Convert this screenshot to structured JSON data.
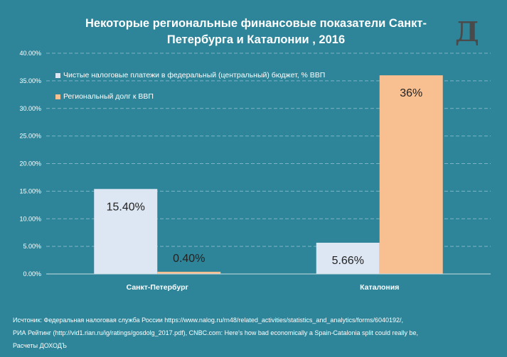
{
  "title_line1": "Некоторые региональные финансовые показатели Санкт-",
  "title_line2": "Петербурга и Каталонии , 2016",
  "logo": "Д",
  "chart_data": {
    "type": "bar",
    "title": "Некоторые региональные финансовые показатели Санкт-Петербурга и Каталонии , 2016",
    "categories": [
      "Санкт-Петербург",
      "Каталония"
    ],
    "series": [
      {
        "name": "Чистые налоговые платежи в федеральный (центральный) бюджет,  % ВВП",
        "color": "#dde6f3",
        "values": [
          15.4,
          5.66
        ],
        "labels": [
          "15.40%",
          "5.66%"
        ]
      },
      {
        "name": "Региональный долг к ВВП",
        "color": "#f8bf90",
        "values": [
          0.4,
          36.0
        ],
        "labels": [
          "0.40%",
          "36%"
        ]
      }
    ],
    "ylim": [
      0,
      40
    ],
    "yticks": [
      0,
      5,
      10,
      15,
      20,
      25,
      30,
      35,
      40
    ],
    "ytick_labels": [
      "0.00%",
      "5.00%",
      "10.00%",
      "15.00%",
      "20.00%",
      "25.00%",
      "30.00%",
      "35.00%",
      "40.00%"
    ],
    "grid": true,
    "legend": "top-left"
  },
  "source": {
    "line1": "Исчтоник: Федеральная налоговая служба России https://www.nalog.ru/rn48/related_activities/statistics_and_analytics/forms/6040192/,",
    "line2": "РИА Рейтинг (http://vid1.rian.ru/ig/ratings/gosdolg_2017.pdf), CNBC.com: Here's how bad economically a Spain-Catalonia split could really be,",
    "line3": "Расчеты ДОХОДЪ"
  }
}
